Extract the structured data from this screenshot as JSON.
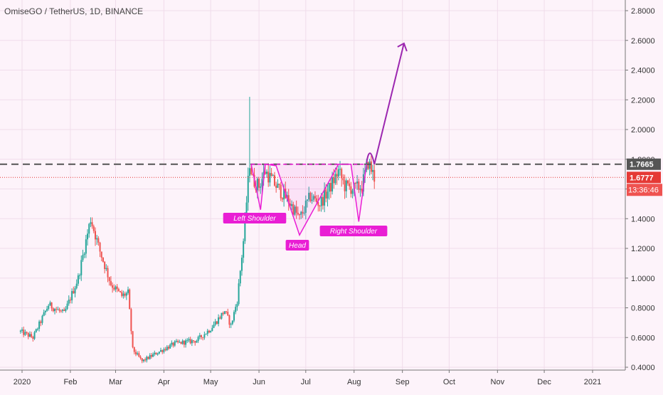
{
  "header": {
    "symbol_title": "OmiseGO / TetherUS, 1D, BINANCE"
  },
  "colors": {
    "background": "#fdf3fa",
    "up_candle": "#26a69a",
    "down_candle": "#ef5350",
    "pattern": "#e91ed4",
    "projection": "#9c27b0",
    "neckline": "#555555",
    "current_price": "#e53935",
    "timer": "#ef5350",
    "neckline_label_bg": "#555555"
  },
  "chart_data": {
    "type": "candlestick",
    "title": "OmiseGO / TetherUS, 1D, BINANCE",
    "x_ticks": [
      "2020",
      "Feb",
      "Mar",
      "Apr",
      "May",
      "Jun",
      "Jul",
      "Aug",
      "Sep",
      "Oct",
      "Nov",
      "Dec",
      "2021"
    ],
    "y_ticks": [
      "2.8000",
      "2.6000",
      "2.4000",
      "2.2000",
      "2.0000",
      "1.8000",
      "1.6000",
      "1.4000",
      "1.2000",
      "1.0000",
      "0.8000",
      "0.6000",
      "0.4000"
    ],
    "ylim": [
      0.4,
      2.8
    ],
    "grid": true,
    "price_path": [
      [
        "2019-12-31",
        0.64
      ],
      [
        "2020-01-08",
        0.6
      ],
      [
        "2020-01-18",
        0.82
      ],
      [
        "2020-01-28",
        0.76
      ],
      [
        "2020-02-06",
        1.0
      ],
      [
        "2020-02-14",
        1.4
      ],
      [
        "2020-02-20",
        1.18
      ],
      [
        "2020-02-27",
        0.96
      ],
      [
        "2020-03-05",
        0.88
      ],
      [
        "2020-03-09",
        0.9
      ],
      [
        "2020-03-12",
        0.52
      ],
      [
        "2020-03-18",
        0.44
      ],
      [
        "2020-03-28",
        0.5
      ],
      [
        "2020-04-08",
        0.56
      ],
      [
        "2020-04-22",
        0.58
      ],
      [
        "2020-05-01",
        0.66
      ],
      [
        "2020-05-10",
        0.78
      ],
      [
        "2020-05-14",
        0.68
      ],
      [
        "2020-05-18",
        0.85
      ],
      [
        "2020-05-22",
        1.25
      ],
      [
        "2020-05-26",
        1.78
      ],
      [
        "2020-05-28",
        1.66
      ],
      [
        "2020-06-01",
        1.62
      ],
      [
        "2020-06-05",
        1.72
      ],
      [
        "2020-06-12",
        1.62
      ],
      [
        "2020-06-20",
        1.52
      ],
      [
        "2020-06-27",
        1.4
      ],
      [
        "2020-07-04",
        1.55
      ],
      [
        "2020-07-10",
        1.5
      ],
      [
        "2020-07-16",
        1.6
      ],
      [
        "2020-07-22",
        1.72
      ],
      [
        "2020-07-26",
        1.62
      ],
      [
        "2020-08-01",
        1.6
      ],
      [
        "2020-08-06",
        1.62
      ],
      [
        "2020-08-10",
        1.78
      ],
      [
        "2020-08-14",
        1.6777
      ]
    ],
    "spike_high": 2.22,
    "neckline": 1.7665,
    "current_price": 1.6777,
    "price_labels": [
      "1.7665",
      "1.6777"
    ],
    "countdown": "13:36:46",
    "annotations": {
      "left_shoulder": "Left Shoulder",
      "head": "Head",
      "right_shoulder": "Right Shoulder"
    },
    "projection_target": 2.58
  }
}
